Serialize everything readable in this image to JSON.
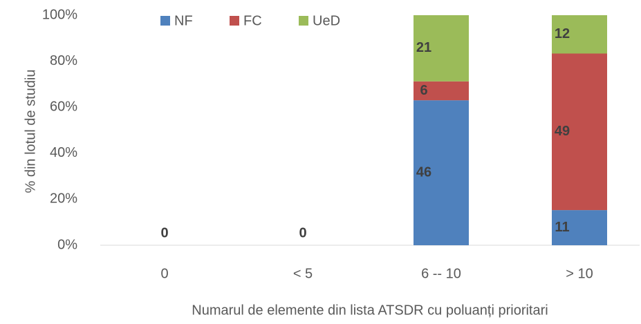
{
  "chart_data": {
    "type": "bar",
    "stacking": "percent",
    "y_axis_label": "% din lotul de studiu",
    "x_axis_label": "Numarul de elemente din lista ATSDR cu poluanți prioritari",
    "categories": [
      "0",
      "< 5",
      "6 -- 10",
      "> 10"
    ],
    "series": [
      {
        "name": "NF",
        "color": "#4f81bd",
        "values": [
          0,
          0,
          46,
          11
        ]
      },
      {
        "name": "FC",
        "color": "#c0504d",
        "values": [
          null,
          null,
          6,
          49
        ]
      },
      {
        "name": "UeD",
        "color": "#9bbb59",
        "values": [
          null,
          null,
          21,
          12
        ]
      }
    ],
    "ylim": [
      0,
      100
    ],
    "yticks": [
      {
        "value": 0,
        "label": "0%"
      },
      {
        "value": 20,
        "label": "20%"
      },
      {
        "value": 40,
        "label": "40%"
      },
      {
        "value": 60,
        "label": "60%"
      },
      {
        "value": 80,
        "label": "80%"
      },
      {
        "value": 100,
        "label": "100%"
      }
    ],
    "grid": false,
    "legend": "top"
  }
}
